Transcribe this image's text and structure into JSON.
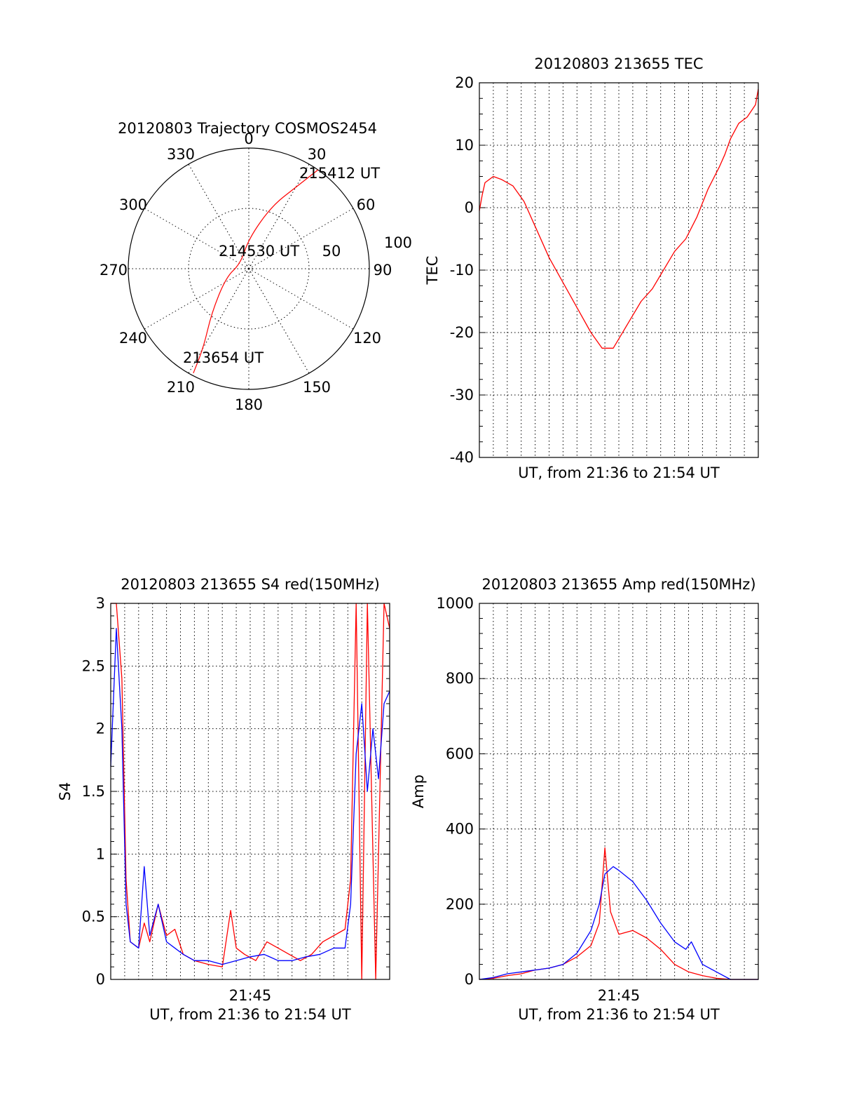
{
  "colors": {
    "red_series": "#ff0000",
    "blue_series": "#0000ff",
    "axes": "#000000"
  },
  "chart_data": [
    {
      "type": "polar",
      "title": "20120803 Trajectory COSMOS2454",
      "angle_ticks": [
        "0",
        "30",
        "60",
        "90",
        "120",
        "150",
        "180",
        "210",
        "240",
        "270",
        "300",
        "330"
      ],
      "radial_ticks": [
        "50",
        "100"
      ],
      "radial_range": [
        0,
        100
      ],
      "annotations": [
        "215412 UT",
        "214530 UT",
        "213654 UT"
      ],
      "trajectory": {
        "color": "#ff0000",
        "points": [
          [
            35,
            100
          ],
          [
            30,
            78
          ],
          [
            20,
            55
          ],
          [
            0,
            25
          ],
          [
            -60,
            8
          ],
          [
            -110,
            20
          ],
          [
            -140,
            48
          ],
          [
            -150,
            75
          ],
          [
            -152,
            98
          ]
        ]
      }
    },
    {
      "type": "line",
      "title": "20120803 213655 TEC",
      "xlabel": "UT, from 21:36 to 21:54 UT",
      "ylabel": "TEC",
      "ylim": [
        -40,
        20
      ],
      "yticks": [
        "-40",
        "-30",
        "-20",
        "-10",
        "0",
        "10",
        "20"
      ],
      "xlim": [
        0,
        1
      ],
      "grid": true,
      "series": [
        {
          "color": "#ff0000",
          "x": [
            0.0,
            0.01,
            0.02,
            0.05,
            0.08,
            0.12,
            0.16,
            0.2,
            0.25,
            0.3,
            0.35,
            0.4,
            0.44,
            0.46,
            0.48,
            0.5,
            0.54,
            0.58,
            0.62,
            0.66,
            0.7,
            0.74,
            0.78,
            0.82,
            0.86,
            0.88,
            0.9,
            0.93,
            0.96,
            0.99,
            1.0
          ],
          "y": [
            -0.5,
            2.0,
            4.0,
            5.0,
            4.5,
            3.5,
            1.0,
            -3.0,
            -8.0,
            -12.0,
            -16.0,
            -20.0,
            -22.5,
            -22.5,
            -22.5,
            -21.0,
            -18.0,
            -15.0,
            -13.0,
            -10.0,
            -7.0,
            -5.0,
            -1.5,
            3.0,
            6.5,
            8.5,
            11.0,
            13.5,
            14.5,
            16.5,
            19.0
          ]
        }
      ]
    },
    {
      "type": "line",
      "title": "20120803 213655 S4 red(150MHz)",
      "xlabel": "UT, from 21:36 to 21:54 UT",
      "ylabel": "S4",
      "ylim": [
        0,
        3
      ],
      "yticks": [
        "0",
        "0.5",
        "1",
        "1.5",
        "2",
        "2.5",
        "3"
      ],
      "xtick_label": "21:45",
      "xlim": [
        0,
        1
      ],
      "grid": true,
      "series": [
        {
          "color": "#ff0000",
          "x": [
            0.0,
            0.02,
            0.04,
            0.055,
            0.07,
            0.1,
            0.12,
            0.14,
            0.17,
            0.2,
            0.23,
            0.26,
            0.3,
            0.35,
            0.4,
            0.43,
            0.45,
            0.48,
            0.52,
            0.56,
            0.6,
            0.64,
            0.68,
            0.72,
            0.76,
            0.8,
            0.84,
            0.86,
            0.88,
            0.9,
            0.92,
            0.95,
            0.98,
            1.0
          ],
          "y": [
            3.0,
            3.0,
            2.4,
            0.8,
            0.3,
            0.25,
            0.45,
            0.3,
            0.6,
            0.35,
            0.4,
            0.2,
            0.15,
            0.12,
            0.1,
            0.55,
            0.25,
            0.2,
            0.15,
            0.3,
            0.25,
            0.2,
            0.15,
            0.2,
            0.3,
            0.35,
            0.4,
            0.8,
            3.0,
            0.0,
            3.0,
            0.0,
            3.0,
            2.8
          ]
        },
        {
          "color": "#0000ff",
          "x": [
            0.0,
            0.02,
            0.04,
            0.055,
            0.07,
            0.1,
            0.12,
            0.14,
            0.17,
            0.2,
            0.23,
            0.26,
            0.3,
            0.35,
            0.4,
            0.45,
            0.5,
            0.55,
            0.6,
            0.65,
            0.7,
            0.75,
            0.8,
            0.84,
            0.86,
            0.88,
            0.9,
            0.92,
            0.94,
            0.96,
            0.98,
            1.0
          ],
          "y": [
            1.7,
            2.8,
            2.0,
            0.6,
            0.3,
            0.25,
            0.9,
            0.35,
            0.6,
            0.3,
            0.25,
            0.2,
            0.15,
            0.15,
            0.12,
            0.15,
            0.18,
            0.2,
            0.15,
            0.15,
            0.18,
            0.2,
            0.25,
            0.25,
            0.6,
            1.8,
            2.2,
            1.5,
            2.0,
            1.6,
            2.2,
            2.3
          ]
        }
      ]
    },
    {
      "type": "line",
      "title": "20120803 213655 Amp red(150MHz)",
      "xlabel": "UT, from 21:36 to 21:54 UT",
      "ylabel": "Amp",
      "ylim": [
        0,
        1000
      ],
      "yticks": [
        "0",
        "200",
        "400",
        "600",
        "800",
        "1000"
      ],
      "xtick_label": "21:45",
      "xlim": [
        0,
        1
      ],
      "grid": true,
      "series": [
        {
          "color": "#ff0000",
          "x": [
            0.0,
            0.05,
            0.1,
            0.15,
            0.2,
            0.25,
            0.3,
            0.35,
            0.4,
            0.43,
            0.45,
            0.47,
            0.5,
            0.55,
            0.6,
            0.65,
            0.7,
            0.75,
            0.8,
            0.85,
            0.9,
            1.0
          ],
          "y": [
            0,
            3,
            10,
            15,
            25,
            30,
            40,
            60,
            90,
            150,
            350,
            180,
            120,
            130,
            110,
            80,
            40,
            20,
            10,
            3,
            0,
            0
          ]
        },
        {
          "color": "#0000ff",
          "x": [
            0.0,
            0.05,
            0.1,
            0.15,
            0.2,
            0.25,
            0.3,
            0.35,
            0.4,
            0.43,
            0.45,
            0.48,
            0.5,
            0.55,
            0.6,
            0.65,
            0.7,
            0.74,
            0.76,
            0.8,
            0.85,
            0.9,
            1.0
          ],
          "y": [
            0,
            5,
            15,
            20,
            25,
            30,
            40,
            70,
            130,
            200,
            280,
            300,
            290,
            260,
            210,
            150,
            100,
            80,
            100,
            40,
            20,
            0,
            0
          ]
        }
      ]
    }
  ]
}
